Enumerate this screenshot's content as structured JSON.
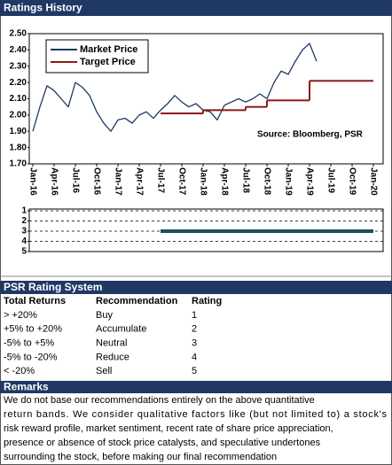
{
  "chart_data": [
    {
      "type": "line",
      "title": "Ratings History",
      "categories": [
        "Jan-16",
        null,
        null,
        "Apr-16",
        null,
        null,
        "Jul-16",
        null,
        null,
        "Oct-16",
        null,
        null,
        "Jan-17",
        null,
        null,
        "Apr-17",
        null,
        null,
        "Jul-17",
        null,
        null,
        "Oct-17",
        null,
        null,
        "Jan-18",
        null,
        null,
        "Apr-18",
        null,
        null,
        "Jul-18",
        null,
        null,
        "Oct-18",
        null,
        null,
        "Jan-19",
        null,
        null,
        "Apr-19",
        null,
        null,
        "Jul-19",
        null,
        null,
        "Oct-19",
        null,
        null,
        "Jan-20"
      ],
      "series": [
        {
          "name": "Market Price",
          "color": "#1f3864",
          "step": false,
          "values": [
            1.9,
            2.05,
            2.18,
            2.15,
            2.1,
            2.05,
            2.2,
            2.17,
            2.12,
            2.02,
            1.95,
            1.9,
            1.97,
            1.98,
            1.95,
            2.0,
            2.02,
            1.98,
            2.03,
            2.07,
            2.12,
            2.08,
            2.05,
            2.07,
            2.03,
            2.02,
            1.97,
            2.06,
            2.08,
            2.1,
            2.08,
            2.1,
            2.13,
            2.1,
            2.2,
            2.27,
            2.25,
            2.33,
            2.4,
            2.44,
            2.33,
            null,
            null,
            null,
            null,
            null,
            null,
            null,
            null
          ]
        },
        {
          "name": "Target Price",
          "color": "#8b1a1a",
          "step": true,
          "values": [
            null,
            null,
            null,
            null,
            null,
            null,
            null,
            null,
            null,
            null,
            null,
            null,
            null,
            null,
            null,
            null,
            null,
            null,
            2.01,
            2.01,
            2.01,
            2.01,
            2.01,
            2.01,
            2.03,
            2.03,
            2.03,
            2.03,
            2.03,
            2.03,
            2.05,
            2.05,
            2.05,
            2.09,
            2.09,
            2.09,
            2.09,
            2.09,
            2.09,
            2.21,
            2.21,
            2.21,
            2.21,
            2.21,
            2.21,
            2.21,
            2.21,
            2.21,
            2.21
          ]
        }
      ],
      "ylim": [
        1.7,
        2.5
      ],
      "yticks": [
        {
          "value": 1.7,
          "label": "1.70"
        },
        {
          "value": 1.8,
          "label": "1.80"
        },
        {
          "value": 1.9,
          "label": "1.90"
        },
        {
          "value": 2.0,
          "label": "2.00"
        },
        {
          "value": 2.1,
          "label": "2.10"
        },
        {
          "value": 2.2,
          "label": "2.20"
        },
        {
          "value": 2.3,
          "label": "2.30"
        },
        {
          "value": 2.4,
          "label": "2.40"
        },
        {
          "value": 2.5,
          "label": "2.50"
        }
      ],
      "grid": false,
      "legend": "top-left",
      "annotation": "Source: Bloomberg, PSR"
    },
    {
      "type": "line",
      "series": [
        {
          "color": "#1e4d5c",
          "values": [
            null,
            null,
            null,
            null,
            null,
            null,
            null,
            null,
            null,
            null,
            null,
            null,
            null,
            null,
            null,
            null,
            null,
            null,
            3,
            3,
            3,
            3,
            3,
            3,
            3,
            3,
            3,
            3,
            3,
            3,
            3,
            3,
            3,
            3,
            3,
            3,
            3,
            3,
            3,
            3,
            3,
            3,
            3,
            3,
            3,
            3,
            3,
            3,
            3
          ]
        }
      ],
      "ylim": [
        5,
        1
      ],
      "yticks": [
        1,
        2,
        3,
        4,
        5
      ],
      "grid": true
    }
  ],
  "rating_system": {
    "title": "PSR Rating System",
    "columns": [
      "Total Returns",
      "Recommendation",
      "Rating"
    ],
    "rows": [
      [
        "> +20%",
        "Buy",
        1
      ],
      [
        "+5% to +20%",
        "Accumulate",
        2
      ],
      [
        "-5% to +5%",
        "Neutral",
        3
      ],
      [
        "-5% to -20%",
        "Reduce",
        4
      ],
      [
        "< -20%",
        "Sell",
        5
      ]
    ]
  },
  "remarks": {
    "title": "Remarks",
    "lines": [
      "We do not base our recommendations entirely on the  above quantitative",
      "return bands.  We consider qualitative factors like (but not limited to) a stock's",
      "risk reward profile, market sentiment, recent rate of share price appreciation,",
      "presence or absence of stock price catalysts, and speculative undertones",
      "surrounding the stock, before making our final recommendation"
    ]
  }
}
